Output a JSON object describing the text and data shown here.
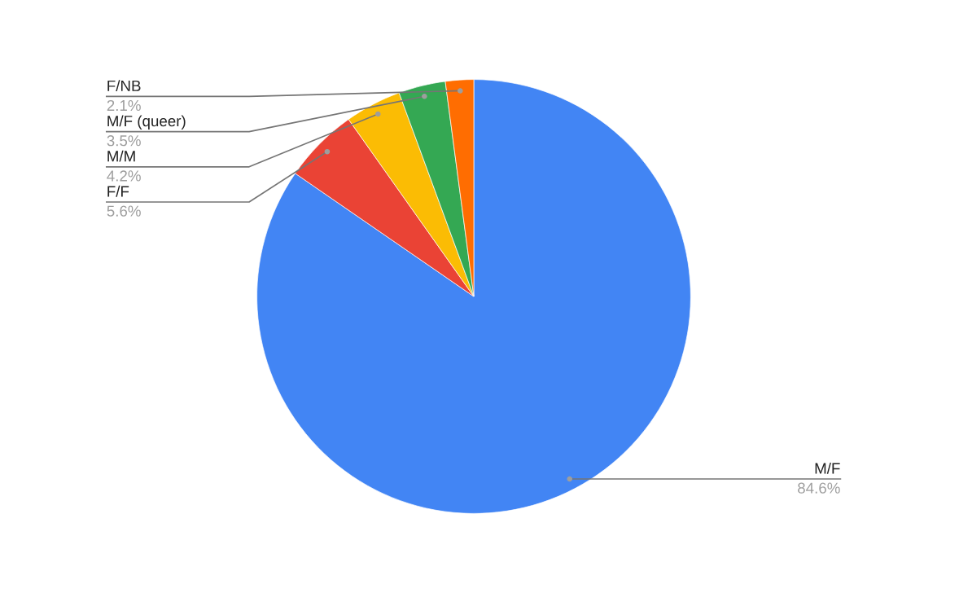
{
  "chart_data": {
    "type": "pie",
    "categories": [
      "M/F",
      "F/F",
      "M/M",
      "M/F (queer)",
      "F/NB"
    ],
    "values": [
      84.6,
      5.6,
      4.2,
      3.5,
      2.1
    ],
    "colors": [
      "#4285f4",
      "#ea4335",
      "#fbbc04",
      "#34a853",
      "#ff6d01"
    ],
    "value_labels": [
      "84.6%",
      "5.6%",
      "4.2%",
      "3.5%",
      "2.1%"
    ],
    "legend": false
  }
}
